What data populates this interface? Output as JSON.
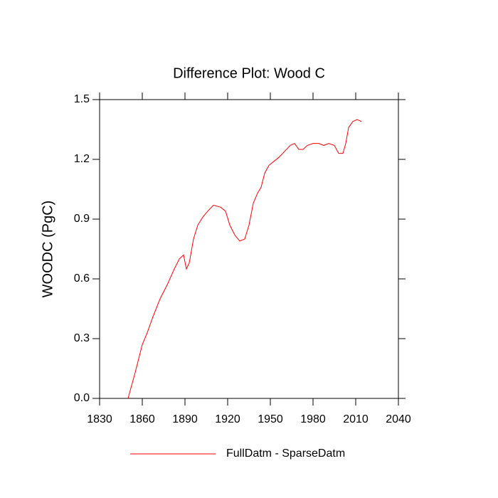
{
  "chart_data": {
    "type": "line",
    "title": "Difference Plot: Wood C",
    "ylabel": "WOODC  (PgC)",
    "xlim": [
      1830,
      2040
    ],
    "xticks": [
      1830,
      1860,
      1890,
      1920,
      1950,
      1980,
      2010,
      2040
    ],
    "ylim": [
      0,
      1.5
    ],
    "yticks": [
      {
        "value": 0,
        "label": "0.0"
      },
      0.3,
      0.6,
      0.9,
      1.2,
      1.5
    ],
    "x": [
      1850,
      1855,
      1860,
      1863.5,
      1867.5,
      1872.5,
      1877.5,
      1882.5,
      1886,
      1889,
      1891,
      1893,
      1896,
      1899,
      1902.5,
      1906,
      1910,
      1915,
      1918.5,
      1921.5,
      1925,
      1928.5,
      1932,
      1935,
      1938,
      1941,
      1943.5,
      1946,
      1949,
      1952.5,
      1956,
      1960,
      1964,
      1967,
      1970,
      1973,
      1976,
      1980,
      1984,
      1987.5,
      1991,
      1995,
      1998,
      2001,
      2003,
      2005,
      2008,
      2011,
      2014
    ],
    "series": [
      {
        "name": "FullDatm - SparseDatm",
        "color": "#ff0000",
        "values": [
          0.0,
          0.13,
          0.27,
          0.33,
          0.41,
          0.5,
          0.57,
          0.65,
          0.7,
          0.72,
          0.65,
          0.68,
          0.8,
          0.87,
          0.91,
          0.94,
          0.97,
          0.96,
          0.94,
          0.87,
          0.82,
          0.79,
          0.8,
          0.87,
          0.98,
          1.03,
          1.06,
          1.13,
          1.17,
          1.19,
          1.21,
          1.24,
          1.27,
          1.28,
          1.25,
          1.25,
          1.27,
          1.28,
          1.28,
          1.27,
          1.28,
          1.27,
          1.23,
          1.23,
          1.28,
          1.36,
          1.39,
          1.4,
          1.39
        ]
      }
    ]
  }
}
